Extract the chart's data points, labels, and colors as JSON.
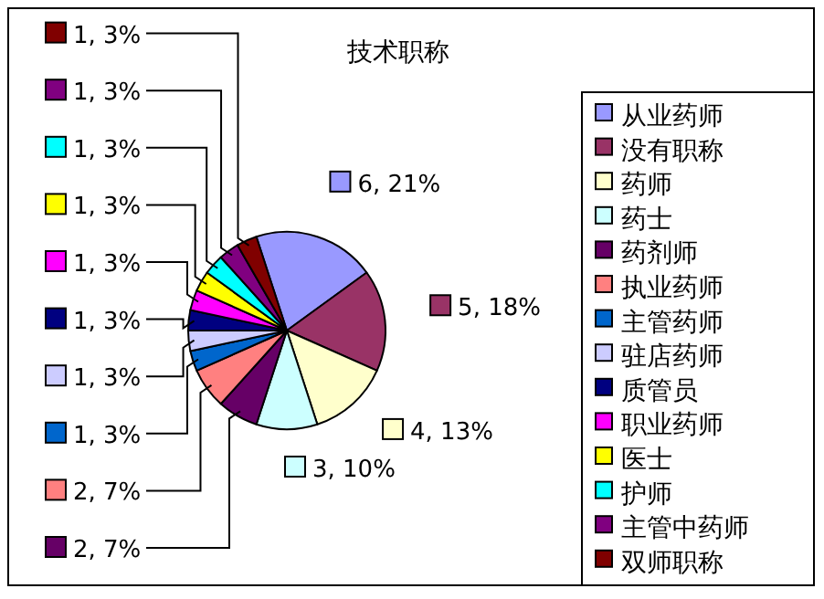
{
  "chart_data": {
    "type": "pie",
    "title": "技术职称",
    "categories": [
      "从业药师",
      "没有职称",
      "药师",
      "药士",
      "药剂师",
      "执业药师",
      "主管药师",
      "驻店药师",
      "质管员",
      "职业药师",
      "医士",
      "护师",
      "主管中药师",
      "双师职称"
    ],
    "values": [
      6,
      5,
      4,
      3,
      2,
      2,
      1,
      1,
      1,
      1,
      1,
      1,
      1,
      1
    ],
    "colors": [
      "#9999ff",
      "#993366",
      "#ffffcc",
      "#ccffff",
      "#660066",
      "#ff8080",
      "#0066cc",
      "#ccccff",
      "#000080",
      "#ff00ff",
      "#ffff00",
      "#00ffff",
      "#800080",
      "#800000"
    ],
    "value_labels": [
      "6, 21%",
      "5, 18%",
      "4, 13%",
      "3, 10%",
      "2, 7%",
      "2, 7%",
      "1, 3%",
      "1, 3%",
      "1, 3%",
      "1, 3%",
      "1, 3%",
      "1, 3%",
      "1, 3%",
      "1, 3%"
    ],
    "legend": "right"
  }
}
